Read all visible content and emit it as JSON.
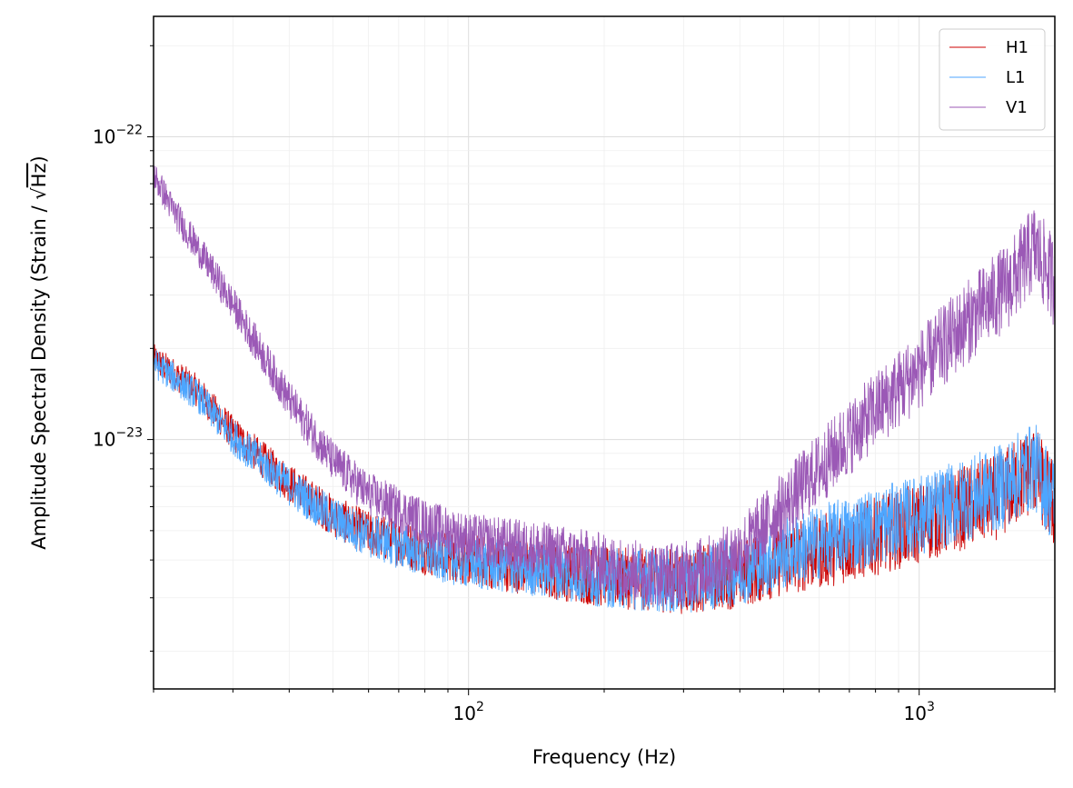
{
  "chart_data": {
    "type": "line",
    "xscale": "log",
    "yscale": "log",
    "xlim": [
      20,
      2000
    ],
    "ylim": [
      1.5e-24,
      2.5e-22
    ],
    "xlabel": "Frequency (Hz)",
    "ylabel_prefix": "Amplitude Spectral Density (Strain / ",
    "ylabel_sqrt": "√",
    "ylabel_unit": "Hz",
    "ylabel_suffix": ")",
    "grid": "both-major-minor",
    "legend_position": "top-right",
    "x_major_ticks": [
      {
        "base": "10",
        "exp": "2",
        "value": 100
      },
      {
        "base": "10",
        "exp": "3",
        "value": 1000
      }
    ],
    "y_major_ticks": [
      {
        "base": "10",
        "exp": "−22",
        "value": 1e-22
      },
      {
        "base": "10",
        "exp": "−23",
        "value": 1e-23
      }
    ],
    "series": [
      {
        "name": "H1",
        "color": "#cc0000",
        "x": [
          20,
          25,
          30,
          40,
          50,
          60,
          80,
          100,
          150,
          200,
          300,
          400,
          500,
          700,
          1000,
          1500,
          1800,
          2000
        ],
        "y": [
          1.85e-23,
          1.45e-23,
          1.05e-23,
          7.2e-24,
          5.6e-24,
          4.9e-24,
          4.3e-24,
          4e-24,
          3.7e-24,
          3.5e-24,
          3.4e-24,
          3.6e-24,
          4e-24,
          4.5e-24,
          5.3e-24,
          6.5e-24,
          8e-24,
          6e-24
        ]
      },
      {
        "name": "L1",
        "color": "#4da6ff",
        "x": [
          20,
          25,
          30,
          40,
          50,
          60,
          80,
          100,
          150,
          200,
          300,
          400,
          500,
          700,
          1000,
          1500,
          1800,
          2000
        ],
        "y": [
          1.8e-23,
          1.4e-23,
          1.02e-23,
          7e-24,
          5.5e-24,
          4.8e-24,
          4.2e-24,
          3.9e-24,
          3.7e-24,
          3.5e-24,
          3.4e-24,
          3.7e-24,
          4.2e-24,
          4.9e-24,
          5.6e-24,
          6.9e-24,
          8.2e-24,
          6.2e-24
        ]
      },
      {
        "name": "V1",
        "color": "#9b59b6",
        "x": [
          20,
          22,
          25,
          30,
          35,
          40,
          50,
          60,
          80,
          100,
          150,
          200,
          250,
          300,
          350,
          400,
          500,
          600,
          800,
          1000,
          1300,
          1600,
          1800,
          2000
        ],
        "y": [
          7.5e-23,
          5.8e-23,
          4.3e-23,
          2.8e-23,
          1.9e-23,
          1.35e-23,
          8.5e-24,
          6.6e-24,
          5.3e-24,
          4.7e-24,
          4.3e-24,
          3.9e-24,
          3.6e-24,
          3.6e-24,
          3.8e-24,
          4.3e-24,
          6e-24,
          8e-24,
          1.25e-23,
          1.7e-23,
          2.5e-23,
          3.3e-23,
          4.3e-23,
          3.3e-23
        ]
      }
    ]
  }
}
